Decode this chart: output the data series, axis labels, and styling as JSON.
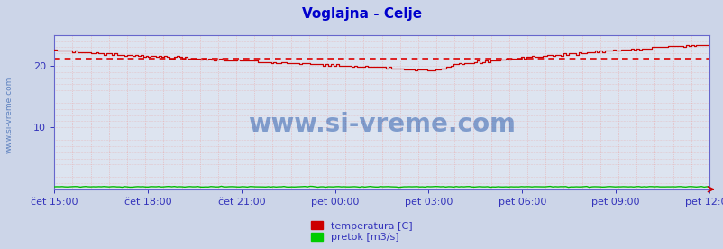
{
  "title": "Voglajna - Celje",
  "title_color": "#0000cc",
  "title_fontsize": 11,
  "bg_color": "#ccd5e8",
  "plot_bg_color": "#dde4f0",
  "ylim": [
    0,
    25
  ],
  "yticks": [
    10,
    20
  ],
  "tick_fontsize": 8,
  "watermark": "www.si-vreme.com",
  "watermark_color": "#2255aa",
  "watermark_fontsize": 20,
  "xtick_labels": [
    "čet 15:00",
    "čet 18:00",
    "čet 21:00",
    "pet 00:00",
    "pet 03:00",
    "pet 06:00",
    "pet 09:00",
    "pet 12:00"
  ],
  "n_points": 252,
  "temp_avg": 21.1,
  "legend_labels": [
    "temperatura [C]",
    "pretok [m3/s]"
  ],
  "legend_colors": [
    "#cc0000",
    "#00cc00"
  ],
  "temp_color": "#cc0000",
  "flow_color": "#00bb00",
  "avg_color": "#dd0000",
  "grid_color": "#e8aaaa",
  "axis_color": "#3333bb",
  "spine_color": "#6666cc"
}
